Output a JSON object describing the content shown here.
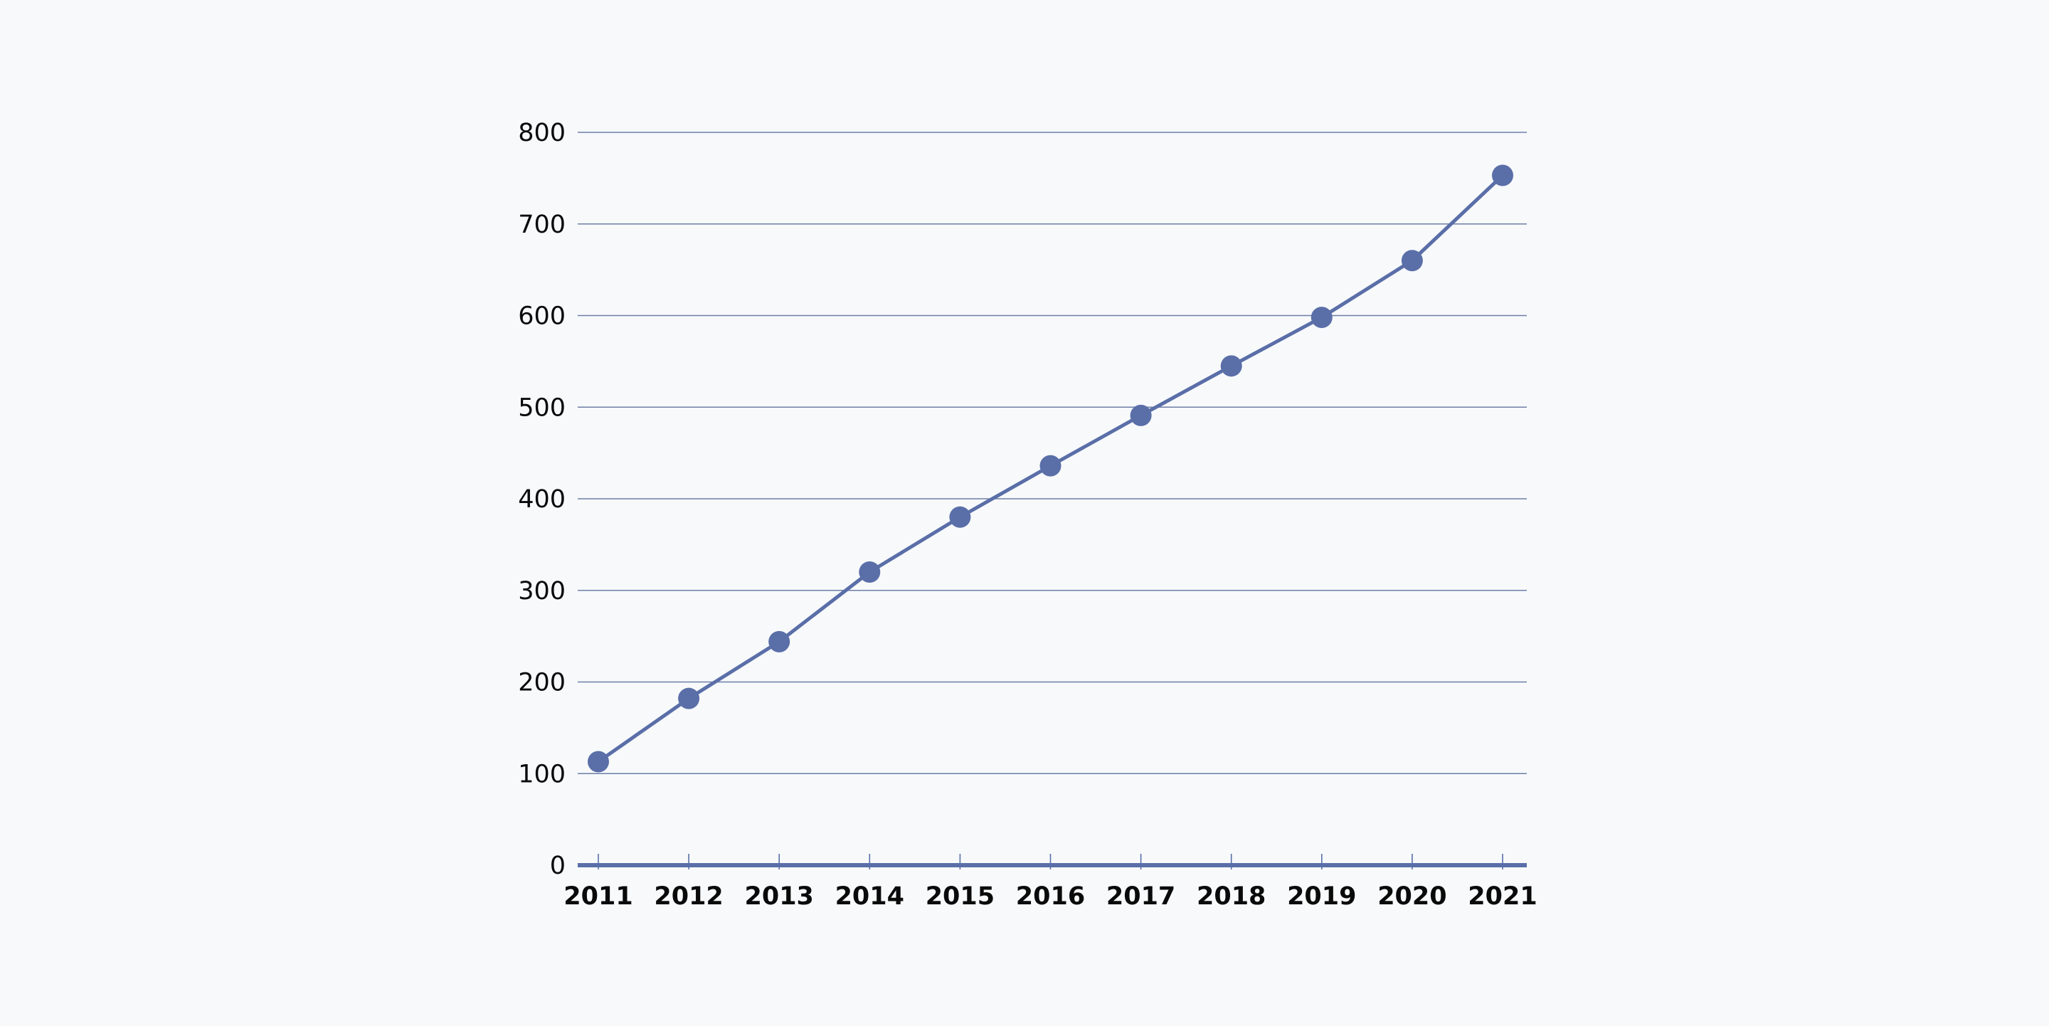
{
  "chart_data": {
    "type": "line",
    "title": "",
    "xlabel": "",
    "ylabel": "",
    "categories": [
      "2011",
      "2012",
      "2013",
      "2014",
      "2015",
      "2016",
      "2017",
      "2018",
      "2019",
      "2020",
      "2021"
    ],
    "series": [
      {
        "values": [
          113,
          182,
          244,
          320,
          380,
          436,
          491,
          545,
          598,
          660,
          753
        ]
      }
    ],
    "ylim": [
      0,
      800
    ],
    "yticks": [
      "0",
      "100",
      "200",
      "300",
      "400",
      "500",
      "600",
      "700",
      "800"
    ],
    "grid": true,
    "legend": "none",
    "colors": {
      "line": "#5a6ea8",
      "marker": "#5a6ea8",
      "grid": "#6d7fa6",
      "axis": "#5a6ea8",
      "background": "#f7f9fb"
    }
  }
}
